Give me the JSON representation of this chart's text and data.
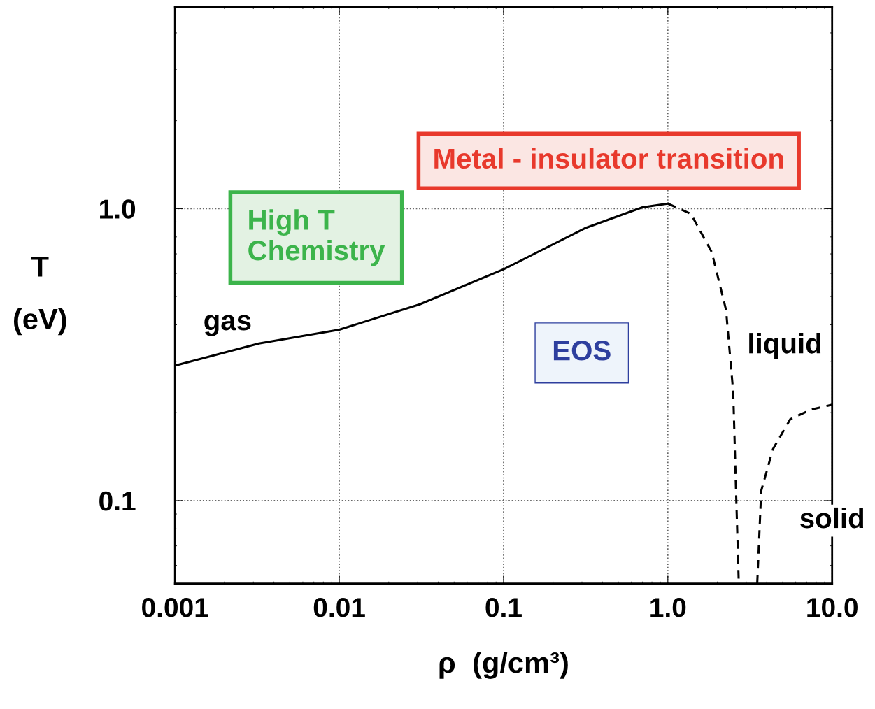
{
  "chart_data": {
    "type": "line",
    "xlabel": "ρ  (g/cm³)",
    "ylabel": "T\n(eV)",
    "log": "xy",
    "grid": true,
    "xlim": [
      0.001,
      10
    ],
    "ylim": [
      0.052,
      4.9
    ],
    "xticks": [
      0.001,
      0.01,
      0.1,
      {
        "value": 1,
        "label": "1.0"
      },
      {
        "value": 10,
        "label": "10.0"
      }
    ],
    "yticks": [
      0.1,
      {
        "value": 1,
        "label": "1.0"
      }
    ],
    "series": [
      {
        "color": "#000000",
        "line_style": "solid",
        "x": [
          0.001,
          0.00324,
          0.01,
          0.0309,
          0.1,
          0.318,
          0.7,
          1.0
        ],
        "values": [
          0.29,
          0.345,
          0.385,
          0.47,
          0.62,
          0.86,
          1.01,
          1.04
        ]
      },
      {
        "color": "#000000",
        "line_style": "dashed",
        "x": [
          1.0,
          1.38,
          1.85,
          2.26,
          2.5,
          2.6,
          2.7
        ],
        "values": [
          1.04,
          0.96,
          0.71,
          0.45,
          0.235,
          0.108,
          0.053
        ]
      },
      {
        "color": "#000000",
        "line_style": "dashed",
        "x": [
          3.5,
          3.7,
          4.36,
          5.56,
          7.45,
          10
        ],
        "values": [
          0.052,
          0.108,
          0.15,
          0.19,
          0.205,
          0.213
        ]
      }
    ],
    "annotations": [
      "gas",
      "liquid",
      "solid",
      "High T\nChemistry",
      "EOS",
      "Metal - insulator transition"
    ]
  }
}
